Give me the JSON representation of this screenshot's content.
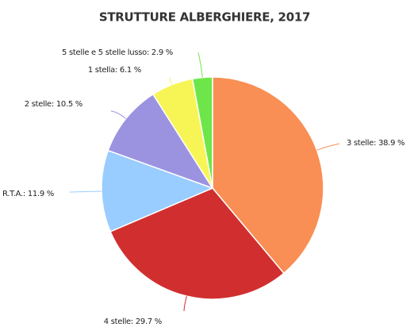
{
  "chart_data": {
    "type": "pie",
    "title": "STRUTTURE ALBERGHIERE, 2017",
    "values": [
      38.9,
      29.7,
      11.9,
      10.5,
      6.1,
      2.9
    ],
    "value_labels": [
      "3 stelle: 38.9 %",
      "4 stelle: 29.7 %",
      "R.T.A.: 11.9 %",
      "2 stelle: 10.5 %",
      "1 stella: 6.1 %",
      "5 stelle e 5 stelle lusso: 2.9 %"
    ],
    "colors": [
      "#f98f54",
      "#d12f2f",
      "#99ccff",
      "#9b93e0",
      "#f7f555",
      "#6ee64a"
    ]
  }
}
